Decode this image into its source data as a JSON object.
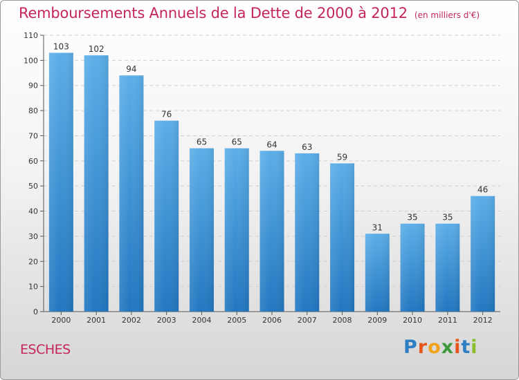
{
  "title": "Remboursements Annuels de la Dette de 2000 à 2012",
  "unit": "(en milliers d'€)",
  "commune": "ESCHES",
  "logo": {
    "letters": [
      "P",
      "r",
      "o",
      "x",
      "i",
      "t",
      "i"
    ],
    "colors": [
      "#2e7ec4",
      "#e6561c",
      "#f2a31b",
      "#3d9a3b",
      "#e6561c",
      "#2e7ec4",
      "#8abd2c"
    ]
  },
  "chart_data": {
    "type": "bar",
    "categories": [
      "2000",
      "2001",
      "2002",
      "2003",
      "2004",
      "2005",
      "2006",
      "2007",
      "2008",
      "2009",
      "2010",
      "2011",
      "2012"
    ],
    "values": [
      103,
      102,
      94,
      76,
      65,
      65,
      64,
      63,
      59,
      31,
      35,
      35,
      46
    ],
    "ylim": [
      0,
      110
    ],
    "yticks": [
      0,
      10,
      20,
      30,
      40,
      50,
      60,
      70,
      80,
      90,
      100,
      110
    ],
    "grid": true,
    "bar_color_top": "#5caee8",
    "bar_color_bottom": "#2277c0"
  }
}
